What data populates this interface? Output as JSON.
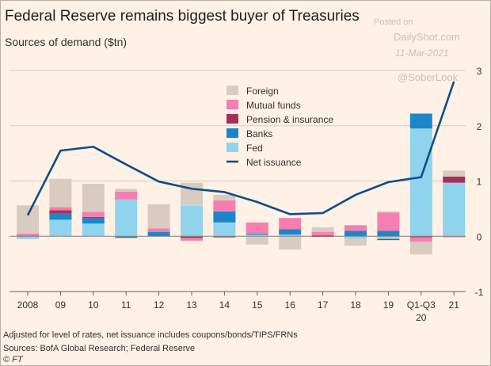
{
  "title": "Federal Reserve remains biggest buyer of Treasuries",
  "subtitle": "Sources of demand ($tn)",
  "watermark": {
    "posted": "Posted on",
    "site": "DailyShot.com",
    "date": "11-Mar-2021",
    "handle": "@SoberLook"
  },
  "footnotes": {
    "note": "Adjusted for level of rates, net issuance includes coupons/bonds/TIPS/FRNs",
    "sources": "Sources: BofA Global Research; Federal Reserve",
    "copyright": "© FT"
  },
  "colors": {
    "background": "#fff1e5",
    "grid": "#d4cec6",
    "axis_text": "#33302e",
    "Foreign": "#d8ccc1",
    "Mutual funds": "#f77eb0",
    "Pension & insurance": "#a62f5a",
    "Banks": "#1a87c9",
    "Fed": "#8fd3ec",
    "Net issuance": "#0f4d8a"
  },
  "chart_data": {
    "type": "bar",
    "stacked": true,
    "categories": [
      "2008",
      "09",
      "10",
      "11",
      "12",
      "13",
      "14",
      "15",
      "16",
      "17",
      "18",
      "19",
      "Q1-Q3 20",
      "21"
    ],
    "category_labels": [
      [
        "2008"
      ],
      [
        "09"
      ],
      [
        "10"
      ],
      [
        "11"
      ],
      [
        "12"
      ],
      [
        "13"
      ],
      [
        "14"
      ],
      [
        "15"
      ],
      [
        "16"
      ],
      [
        "17"
      ],
      [
        "18"
      ],
      [
        "19"
      ],
      [
        "Q1-Q3",
        "20"
      ],
      [
        "21"
      ]
    ],
    "series": [
      {
        "name": "Fed",
        "type": "bar",
        "values": [
          -0.05,
          0.3,
          0.23,
          0.67,
          0.0,
          0.55,
          0.25,
          0.03,
          0.03,
          0.0,
          -0.05,
          -0.05,
          1.95,
          0.97
        ]
      },
      {
        "name": "Banks",
        "type": "bar",
        "values": [
          0.01,
          0.12,
          0.1,
          -0.03,
          0.08,
          0.0,
          0.2,
          0.02,
          0.1,
          0.02,
          0.1,
          0.1,
          0.27,
          0.0
        ]
      },
      {
        "name": "Pension & insurance",
        "type": "bar",
        "values": [
          0.0,
          0.05,
          0.02,
          0.0,
          0.0,
          -0.03,
          -0.02,
          0.0,
          0.0,
          -0.01,
          0.0,
          -0.02,
          -0.02,
          0.11
        ]
      },
      {
        "name": "Mutual funds",
        "type": "bar",
        "values": [
          0.04,
          0.06,
          0.09,
          0.14,
          0.06,
          -0.05,
          0.2,
          0.2,
          0.2,
          0.06,
          0.1,
          0.33,
          -0.08,
          -0.02
        ]
      },
      {
        "name": "Foreign",
        "type": "bar",
        "values": [
          0.51,
          0.51,
          0.51,
          0.05,
          0.44,
          0.42,
          0.1,
          -0.15,
          -0.24,
          0.08,
          -0.12,
          0.02,
          -0.23,
          0.11
        ]
      },
      {
        "name": "Net issuance",
        "type": "line",
        "values": [
          0.38,
          1.55,
          1.62,
          1.3,
          0.99,
          0.86,
          0.8,
          0.62,
          0.4,
          0.42,
          0.75,
          0.98,
          1.07,
          2.8
        ]
      }
    ],
    "legend": [
      "Foreign",
      "Mutual funds",
      "Pension & insurance",
      "Banks",
      "Fed",
      "Net issuance"
    ],
    "legend_position": "top-center",
    "ylim": [
      -1,
      3
    ],
    "yticks": [
      -1,
      0,
      1,
      2,
      3
    ],
    "y_axis_side": "right",
    "grid": true,
    "xlabel": "",
    "ylabel": ""
  }
}
